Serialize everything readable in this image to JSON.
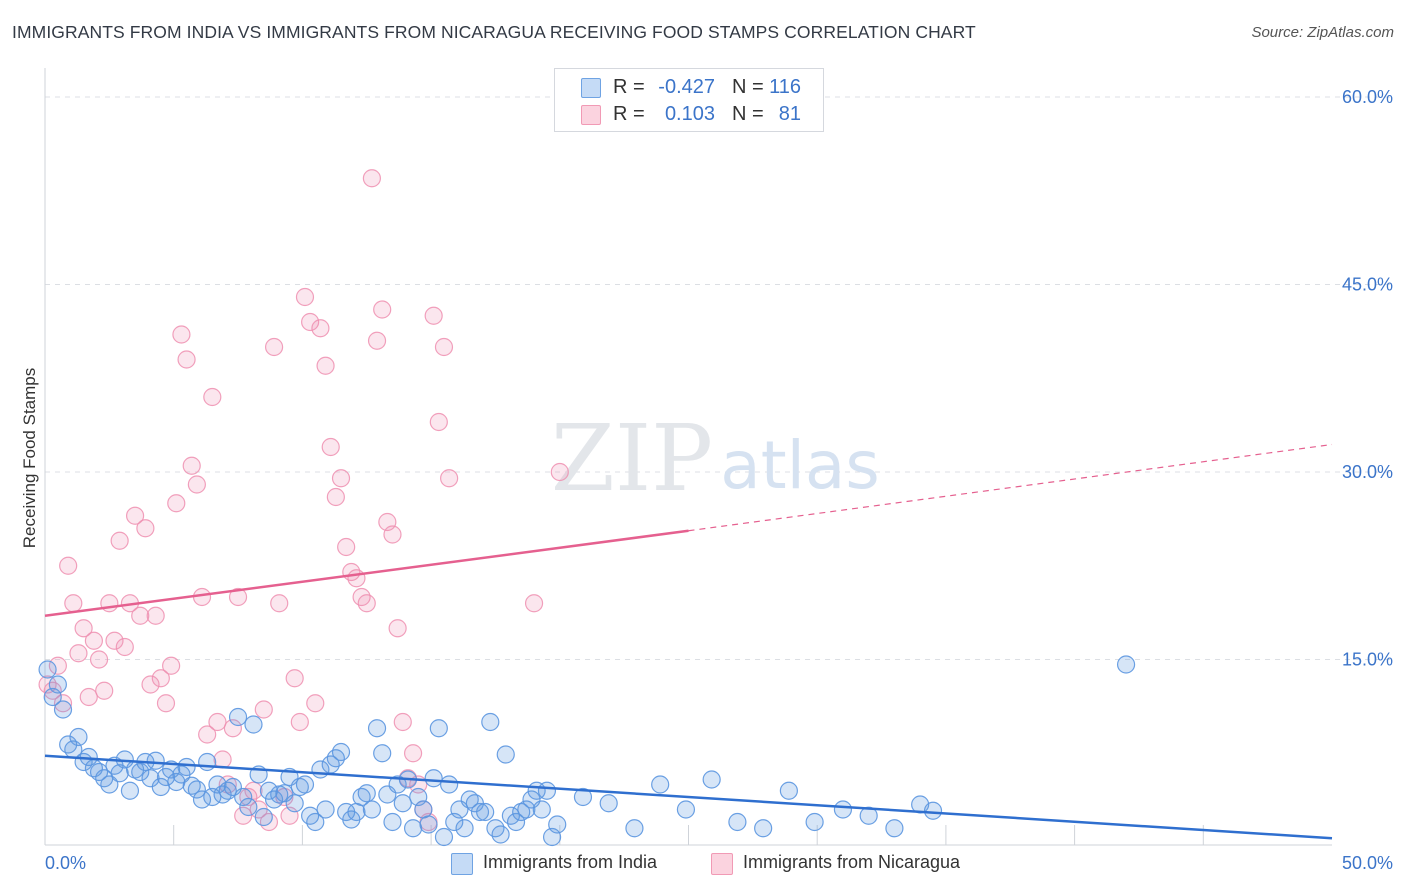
{
  "header": {
    "title": "IMMIGRANTS FROM INDIA VS IMMIGRANTS FROM NICARAGUA RECEIVING FOOD STAMPS CORRELATION CHART",
    "source": "Source: ZipAtlas.com"
  },
  "watermark": {
    "zip": "ZIP",
    "atlas": "atlas"
  },
  "stats": [
    {
      "r_label": "R =",
      "r_value": "-0.427",
      "n_label": "N =",
      "n_value": "116",
      "color": "#6fa3e3"
    },
    {
      "r_label": "R =",
      "r_value": "0.103",
      "n_label": "N =",
      "n_value": "81",
      "color": "#f19ab5"
    }
  ],
  "legend": [
    {
      "label": "Immigrants from India",
      "color": "#6fa3e3"
    },
    {
      "label": "Immigrants from Nicaragua",
      "color": "#f19ab5"
    }
  ],
  "colors": {
    "india": "#5b96e0",
    "india_line": "#2f6fcf",
    "nicaragua": "#ee8fb0",
    "nicaragua_line": "#e5608f",
    "tick_text": "#3b74c9",
    "grid": "#dcdfe4"
  },
  "chart_data": {
    "type": "scatter",
    "title": "IMMIGRANTS FROM INDIA VS IMMIGRANTS FROM NICARAGUA RECEIVING FOOD STAMPS CORRELATION CHART",
    "xlabel": "",
    "ylabel": "Receiving Food Stamps",
    "xlim": [
      0,
      50
    ],
    "ylim": [
      0,
      60
    ],
    "x_tick_labels": [
      "0.0%",
      "50.0%"
    ],
    "y_ticks": [
      15,
      30,
      45,
      60
    ],
    "y_tick_labels": [
      "15.0%",
      "30.0%",
      "45.0%",
      "60.0%"
    ],
    "grid": true,
    "legend_position": "bottom-center",
    "series": [
      {
        "name": "Immigrants from India",
        "trend": {
          "x": [
            0,
            50
          ],
          "y": [
            7.3,
            0.7
          ],
          "style": "solid"
        },
        "points": [
          [
            0.1,
            14.2
          ],
          [
            0.3,
            12.0
          ],
          [
            0.5,
            13.0
          ],
          [
            0.7,
            11.0
          ],
          [
            0.9,
            8.2
          ],
          [
            1.1,
            7.8
          ],
          [
            1.3,
            8.8
          ],
          [
            1.5,
            6.8
          ],
          [
            1.7,
            7.2
          ],
          [
            1.9,
            6.3
          ],
          [
            2.1,
            6.0
          ],
          [
            2.3,
            5.5
          ],
          [
            2.5,
            5.0
          ],
          [
            2.7,
            6.5
          ],
          [
            2.9,
            5.9
          ],
          [
            3.1,
            7.0
          ],
          [
            3.3,
            4.5
          ],
          [
            3.5,
            6.2
          ],
          [
            3.7,
            6.0
          ],
          [
            3.9,
            6.8
          ],
          [
            4.1,
            5.5
          ],
          [
            4.3,
            6.9
          ],
          [
            4.5,
            4.8
          ],
          [
            4.7,
            5.6
          ],
          [
            4.9,
            6.2
          ],
          [
            5.1,
            5.2
          ],
          [
            5.3,
            5.8
          ],
          [
            5.5,
            6.4
          ],
          [
            5.7,
            4.9
          ],
          [
            5.9,
            4.6
          ],
          [
            6.1,
            3.8
          ],
          [
            6.3,
            6.8
          ],
          [
            6.5,
            4.0
          ],
          [
            6.7,
            5.0
          ],
          [
            6.9,
            4.2
          ],
          [
            7.1,
            4.5
          ],
          [
            7.3,
            4.8
          ],
          [
            7.5,
            10.4
          ],
          [
            7.7,
            4.0
          ],
          [
            7.9,
            3.2
          ],
          [
            8.1,
            9.8
          ],
          [
            8.3,
            5.8
          ],
          [
            8.5,
            2.4
          ],
          [
            8.7,
            4.5
          ],
          [
            8.9,
            3.8
          ],
          [
            9.1,
            4.2
          ],
          [
            9.3,
            4.3
          ],
          [
            9.5,
            5.6
          ],
          [
            9.7,
            3.5
          ],
          [
            9.9,
            4.8
          ],
          [
            10.1,
            5.0
          ],
          [
            10.3,
            2.5
          ],
          [
            10.5,
            2.0
          ],
          [
            10.7,
            6.2
          ],
          [
            10.9,
            3.0
          ],
          [
            11.1,
            6.6
          ],
          [
            11.3,
            7.1
          ],
          [
            11.5,
            7.6
          ],
          [
            11.7,
            2.8
          ],
          [
            11.9,
            2.2
          ],
          [
            12.1,
            2.8
          ],
          [
            12.3,
            4.0
          ],
          [
            12.5,
            4.3
          ],
          [
            12.7,
            3.0
          ],
          [
            12.9,
            9.5
          ],
          [
            13.1,
            7.5
          ],
          [
            13.3,
            4.2
          ],
          [
            13.5,
            2.0
          ],
          [
            13.7,
            5.0
          ],
          [
            13.9,
            3.5
          ],
          [
            14.1,
            5.4
          ],
          [
            14.3,
            1.5
          ],
          [
            14.5,
            4.0
          ],
          [
            14.7,
            3.0
          ],
          [
            14.9,
            1.8
          ],
          [
            15.1,
            5.5
          ],
          [
            15.3,
            9.5
          ],
          [
            15.5,
            0.8
          ],
          [
            15.7,
            5.0
          ],
          [
            15.9,
            2.0
          ],
          [
            16.1,
            3.0
          ],
          [
            16.3,
            1.5
          ],
          [
            16.5,
            3.8
          ],
          [
            16.7,
            3.5
          ],
          [
            16.9,
            2.8
          ],
          [
            17.1,
            2.8
          ],
          [
            17.3,
            10.0
          ],
          [
            17.5,
            1.5
          ],
          [
            17.7,
            1.0
          ],
          [
            17.9,
            7.4
          ],
          [
            18.1,
            2.5
          ],
          [
            18.3,
            2.0
          ],
          [
            18.5,
            2.8
          ],
          [
            18.7,
            3.0
          ],
          [
            18.9,
            3.8
          ],
          [
            19.1,
            4.5
          ],
          [
            19.3,
            3.0
          ],
          [
            19.5,
            4.5
          ],
          [
            19.7,
            0.8
          ],
          [
            19.9,
            1.8
          ],
          [
            20.9,
            4.0
          ],
          [
            21.9,
            3.5
          ],
          [
            22.9,
            1.5
          ],
          [
            23.9,
            5.0
          ],
          [
            24.9,
            3.0
          ],
          [
            25.9,
            5.4
          ],
          [
            26.9,
            2.0
          ],
          [
            27.9,
            1.5
          ],
          [
            28.9,
            4.5
          ],
          [
            29.9,
            2.0
          ],
          [
            31.0,
            3.0
          ],
          [
            32.0,
            2.5
          ],
          [
            33.0,
            1.5
          ],
          [
            34.0,
            3.4
          ],
          [
            34.5,
            2.9
          ],
          [
            42.0,
            14.6
          ]
        ]
      },
      {
        "name": "Immigrants from Nicaragua",
        "trend": {
          "x": [
            0,
            25
          ],
          "y": [
            18.5,
            25.3
          ],
          "style": "solid",
          "dashed_extension": {
            "x": [
              25,
              50
            ],
            "y": [
              25.3,
              32.2
            ]
          }
        },
        "points": [
          [
            0.1,
            13.0
          ],
          [
            0.3,
            12.5
          ],
          [
            0.5,
            14.5
          ],
          [
            0.7,
            11.5
          ],
          [
            0.9,
            22.5
          ],
          [
            1.1,
            19.5
          ],
          [
            1.3,
            15.5
          ],
          [
            1.5,
            17.5
          ],
          [
            1.7,
            12.0
          ],
          [
            1.9,
            16.5
          ],
          [
            2.1,
            15.0
          ],
          [
            2.3,
            12.5
          ],
          [
            2.5,
            19.5
          ],
          [
            2.7,
            16.5
          ],
          [
            2.9,
            24.5
          ],
          [
            3.1,
            16.0
          ],
          [
            3.3,
            19.5
          ],
          [
            3.5,
            26.5
          ],
          [
            3.7,
            18.5
          ],
          [
            3.9,
            25.5
          ],
          [
            4.1,
            13.0
          ],
          [
            4.3,
            18.5
          ],
          [
            4.5,
            13.5
          ],
          [
            4.7,
            11.5
          ],
          [
            4.9,
            14.5
          ],
          [
            5.1,
            27.5
          ],
          [
            5.3,
            41.0
          ],
          [
            5.5,
            39.0
          ],
          [
            5.7,
            30.5
          ],
          [
            5.9,
            29.0
          ],
          [
            6.1,
            20.0
          ],
          [
            6.3,
            9.0
          ],
          [
            6.5,
            36.0
          ],
          [
            6.7,
            10.0
          ],
          [
            6.9,
            7.0
          ],
          [
            7.1,
            5.0
          ],
          [
            7.3,
            9.5
          ],
          [
            7.5,
            20.0
          ],
          [
            7.7,
            2.5
          ],
          [
            7.9,
            4.0
          ],
          [
            8.1,
            4.5
          ],
          [
            8.3,
            3.0
          ],
          [
            8.5,
            11.0
          ],
          [
            8.7,
            2.0
          ],
          [
            8.9,
            40.0
          ],
          [
            9.1,
            19.5
          ],
          [
            9.3,
            4.0
          ],
          [
            9.5,
            2.5
          ],
          [
            9.7,
            13.5
          ],
          [
            9.9,
            10.0
          ],
          [
            10.1,
            44.0
          ],
          [
            10.3,
            42.0
          ],
          [
            10.5,
            11.5
          ],
          [
            10.7,
            41.5
          ],
          [
            10.9,
            38.5
          ],
          [
            11.1,
            32.0
          ],
          [
            11.3,
            28.0
          ],
          [
            11.5,
            29.5
          ],
          [
            11.7,
            24.0
          ],
          [
            11.9,
            22.0
          ],
          [
            12.1,
            21.5
          ],
          [
            12.3,
            20.0
          ],
          [
            12.5,
            19.5
          ],
          [
            12.7,
            53.5
          ],
          [
            12.9,
            40.5
          ],
          [
            13.1,
            43.0
          ],
          [
            13.3,
            26.0
          ],
          [
            13.5,
            25.0
          ],
          [
            13.7,
            17.5
          ],
          [
            13.9,
            10.0
          ],
          [
            14.1,
            5.5
          ],
          [
            14.3,
            7.5
          ],
          [
            14.5,
            5.0
          ],
          [
            14.7,
            3.0
          ],
          [
            14.9,
            2.0
          ],
          [
            15.1,
            42.5
          ],
          [
            15.3,
            34.0
          ],
          [
            15.5,
            40.0
          ],
          [
            15.7,
            29.5
          ],
          [
            19.0,
            19.5
          ],
          [
            20.0,
            30.0
          ]
        ]
      }
    ]
  }
}
